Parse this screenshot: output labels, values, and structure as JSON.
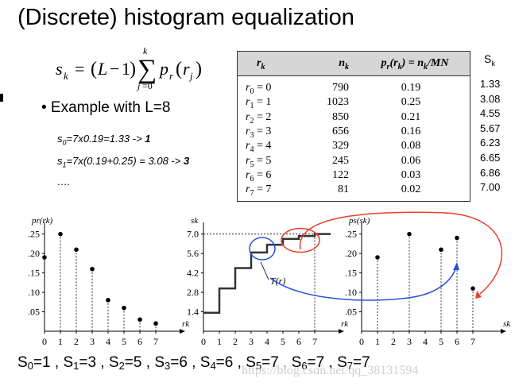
{
  "title": "(Discrete) histogram equalization",
  "example": "• Example with L=8",
  "calc": {
    "line0_pre": "7x0.19=1.33 -> ",
    "line0_res": "1",
    "line1_pre": "7x(0.19+0.25) = 3.08 -> ",
    "line1_res": "3",
    "line2": "…."
  },
  "table": {
    "headers": [
      "r",
      "n",
      "p_r(r_k) = n_k/MN"
    ],
    "rows": [
      {
        "r": "r0 = 0",
        "n": "790",
        "p": "0.19"
      },
      {
        "r": "r1 = 1",
        "n": "1023",
        "p": "0.25"
      },
      {
        "r": "r2 = 2",
        "n": "850",
        "p": "0.21"
      },
      {
        "r": "r3 = 3",
        "n": "656",
        "p": "0.16"
      },
      {
        "r": "r4 = 4",
        "n": "329",
        "p": "0.08"
      },
      {
        "r": "r5 = 5",
        "n": "245",
        "p": "0.06"
      },
      {
        "r": "r6 = 6",
        "n": "122",
        "p": "0.03"
      },
      {
        "r": "r7 = 7",
        "n": "81",
        "p": "0.02"
      }
    ]
  },
  "sk": {
    "header": "Sk",
    "values": [
      "1.33",
      "3.08",
      "4.55",
      "5.67",
      "6.23",
      "6.65",
      "6.86",
      "7.00"
    ]
  },
  "bottom": {
    "items": [
      "S0=1",
      "S1=3",
      "S2=5",
      "S3=6",
      "S4=6",
      "S5=7",
      "S6=7",
      "S7=7"
    ]
  },
  "watermark": "https://blog.csdn.net/qq_38131594",
  "plots": {
    "pr": {
      "ylabel": "pr(rk)",
      "xlabel": "rk",
      "x": [
        0,
        1,
        2,
        3,
        4,
        5,
        6,
        7
      ],
      "y": [
        0.19,
        0.25,
        0.21,
        0.16,
        0.08,
        0.06,
        0.03,
        0.02
      ],
      "yticks": [
        ".25",
        ".20",
        ".15",
        ".10",
        ".05"
      ],
      "xticks": [
        "0",
        "1",
        "2",
        "3",
        "4",
        "5",
        "6",
        "7"
      ]
    },
    "transform": {
      "ylabel": "sk",
      "xlabel": "rk",
      "curve_label": "T(r)",
      "x": [
        0,
        1,
        2,
        3,
        4,
        5,
        6,
        7
      ],
      "y": [
        1.33,
        3.08,
        4.55,
        5.67,
        6.23,
        6.65,
        6.86,
        7.0
      ],
      "yticks": [
        "7.0",
        "5.6",
        "4.2",
        "2.8",
        "1.4"
      ],
      "xticks": [
        "0",
        "1",
        "2",
        "3",
        "4",
        "5",
        "6",
        "7"
      ]
    },
    "ps": {
      "ylabel": "ps(sk)",
      "xlabel": "sk",
      "x": [
        1,
        3,
        5,
        6,
        7
      ],
      "y": [
        0.19,
        0.25,
        0.21,
        0.24,
        0.11
      ],
      "yticks": [
        ".25",
        ".20",
        ".15",
        ".10",
        ".05"
      ],
      "xticks": [
        "0",
        "1",
        "2",
        "3",
        "4",
        "5",
        "6",
        "7"
      ]
    },
    "colors": {
      "red": "#e8402a",
      "blue": "#2750d8"
    }
  }
}
